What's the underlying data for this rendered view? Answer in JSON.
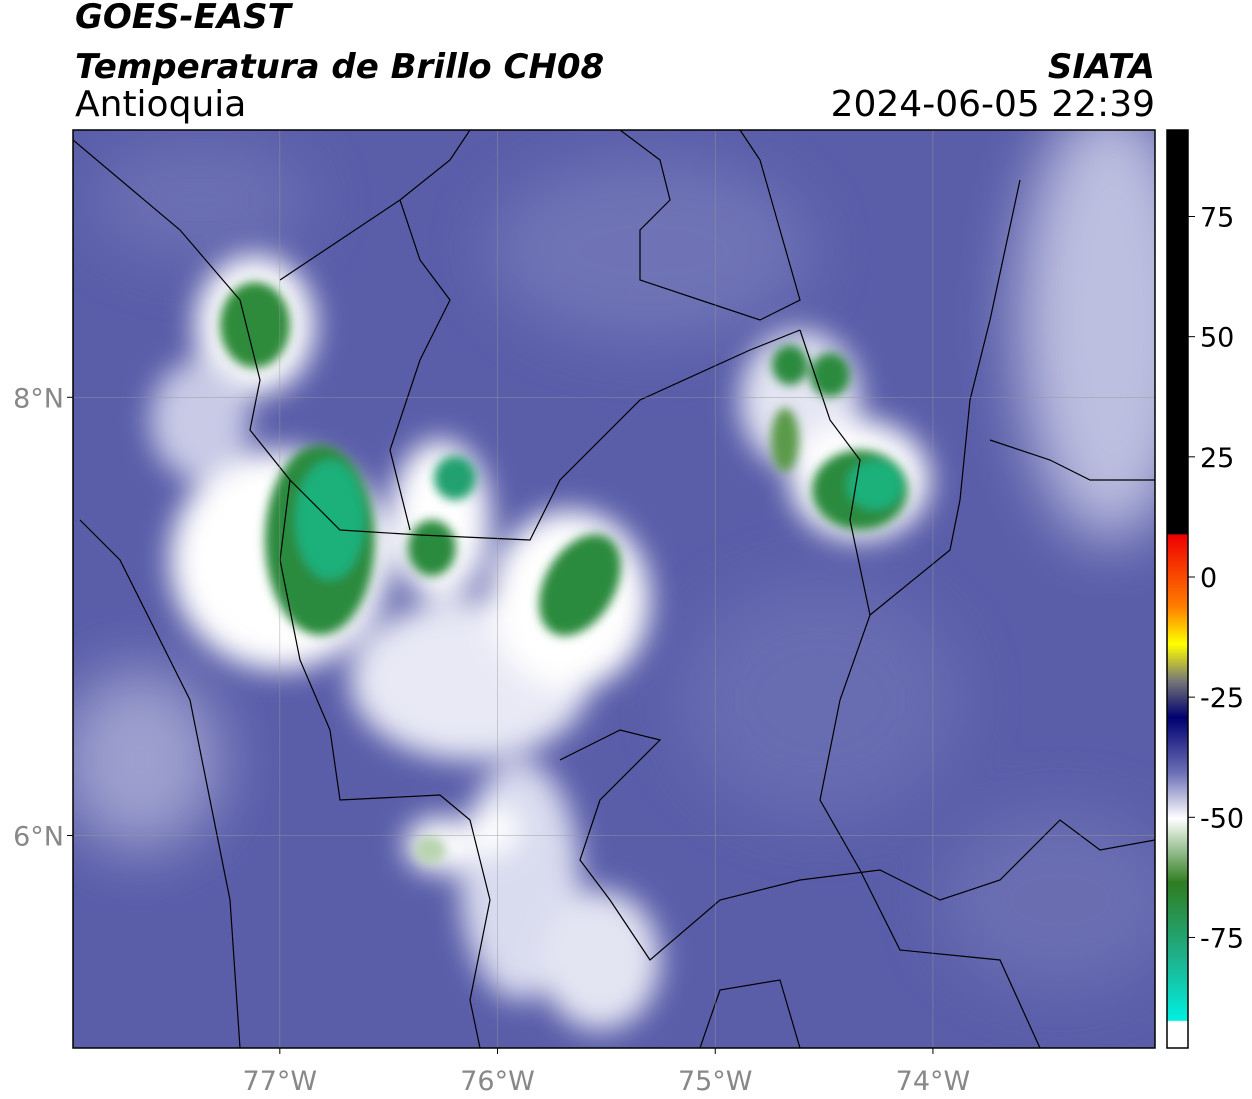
{
  "header": {
    "satellite": "GOES-EAST",
    "product": "Temperatura de Brillo CH08",
    "region": "Antioquia",
    "source": "SIATA",
    "datetime": "2024-06-05 22:39"
  },
  "map": {
    "xlim": [
      -77.95,
      -72.98
    ],
    "ylim": [
      5.03,
      9.22
    ],
    "xticks": [
      {
        "value": -77,
        "label": "77°W"
      },
      {
        "value": -76,
        "label": "76°W"
      },
      {
        "value": -75,
        "label": "75°W"
      },
      {
        "value": -74,
        "label": "74°W"
      }
    ],
    "yticks": [
      {
        "value": 8,
        "label": "8°N"
      },
      {
        "value": 6,
        "label": "6°N"
      }
    ]
  },
  "colorbar": {
    "lim": [
      -98,
      93
    ],
    "ticks": [
      75,
      50,
      25,
      0,
      -25,
      -50,
      -75
    ]
  }
}
